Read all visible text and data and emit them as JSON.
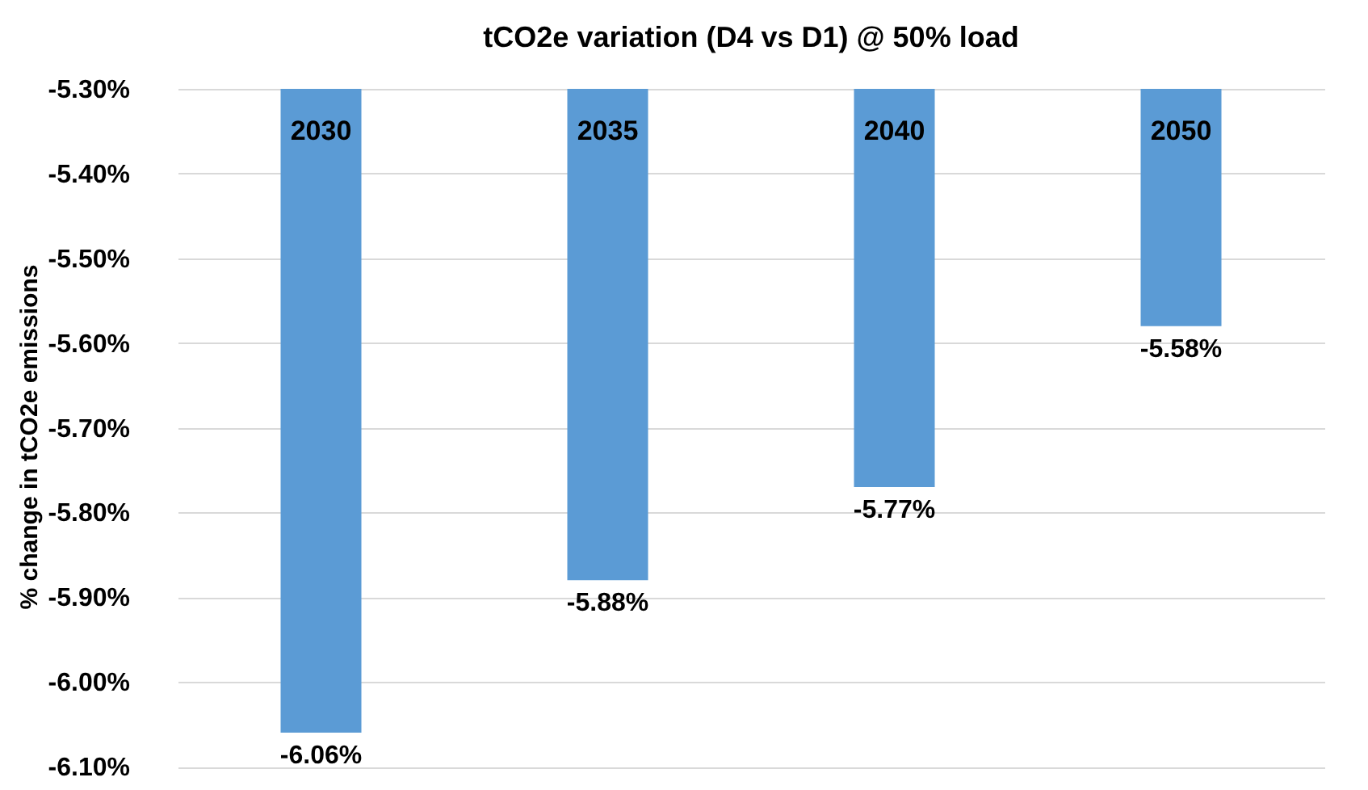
{
  "chart_data": {
    "type": "bar",
    "title": "tCO2e variation (D4 vs D1) @ 50% load",
    "ylabel": "% change in tCO2e emissions",
    "categories": [
      "2030",
      "2035",
      "2040",
      "2050"
    ],
    "values": [
      -6.06,
      -5.88,
      -5.77,
      -5.58
    ],
    "value_labels": [
      "-6.06%",
      "-5.88%",
      "-5.77%",
      "-5.58%"
    ],
    "color": "#5b9bd5",
    "ylim": [
      -6.12,
      -5.3
    ],
    "yticks": [
      {
        "value": -5.3,
        "label": "-5.30%"
      },
      {
        "value": -5.4,
        "label": "-5.40%"
      },
      {
        "value": -5.5,
        "label": "-5.50%"
      },
      {
        "value": -5.6,
        "label": "-5.60%"
      },
      {
        "value": -5.7,
        "label": "-5.70%"
      },
      {
        "value": -5.8,
        "label": "-5.80%"
      },
      {
        "value": -5.9,
        "label": "-5.90%"
      },
      {
        "value": -6.0,
        "label": "-6.00%"
      },
      {
        "value": -6.1,
        "label": "-6.10%"
      }
    ],
    "grid": "y"
  }
}
